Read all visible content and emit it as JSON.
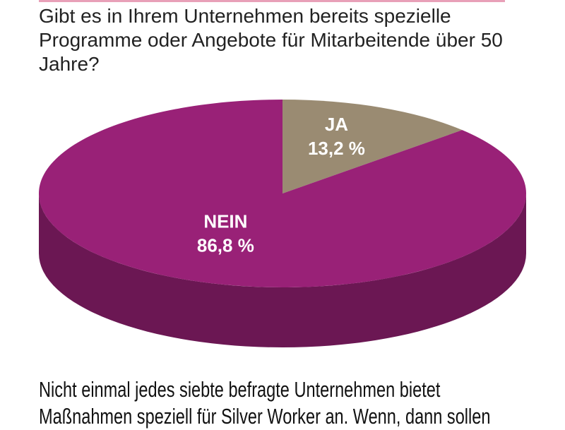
{
  "chart_data": {
    "type": "pie",
    "title": "Gibt es in Ihrem Unternehmen bereits spezielle Programme oder Angebote für Mitarbeitende über 50 Jahre?",
    "categories": [
      "JA",
      "NEIN"
    ],
    "values": [
      13.2,
      86.8
    ],
    "value_labels": [
      "13,2 %",
      "86,8 %"
    ],
    "colors": [
      "#9a8b72",
      "#992177"
    ],
    "caption": "Nicht einmal jedes siebte befragte Unternehmen bietet Maßnahmen speziell für Silver Worker an. Wenn, dann sollen"
  }
}
